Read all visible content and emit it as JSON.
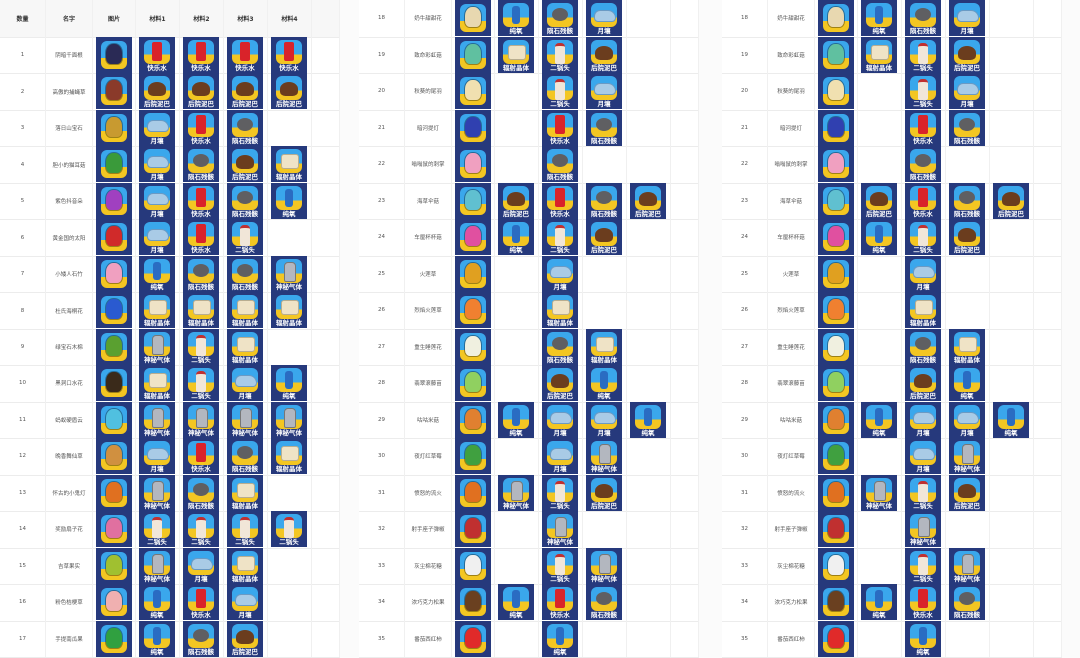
{
  "headers": [
    "数量",
    "名字",
    "图片",
    "材料1",
    "材料2",
    "材料3",
    "材料4"
  ],
  "materials": {
    "K": {
      "label": "快乐水",
      "icon": "cola-can-icon",
      "color": "#d9232a"
    },
    "M": {
      "label": "后院泥巴",
      "icon": "mud-icon",
      "color": "#6b3d1e"
    },
    "Y": {
      "label": "月壤",
      "icon": "moon-soil-icon",
      "color": "#a9cbe6"
    },
    "S": {
      "label": "陨石残骸",
      "icon": "meteorite-icon",
      "color": "#5f5f62"
    },
    "F": {
      "label": "辐射晶体",
      "icon": "crystal-icon",
      "color": "#efe3c6"
    },
    "O": {
      "label": "纯氧",
      "icon": "oxygen-bottle-icon",
      "color": "#2a6cc2"
    },
    "G": {
      "label": "神秘气体",
      "icon": "gas-cylinder-icon",
      "color": "#b3b7bf"
    },
    "E": {
      "label": "二锅头",
      "icon": "liquor-bottle-icon",
      "color": "#f1e6d8"
    }
  },
  "rows_left": [
    {
      "num": "1",
      "name": "阴暗千面根",
      "plant": "#2a2a55",
      "mats": [
        "K",
        "K",
        "K",
        "K"
      ]
    },
    {
      "num": "2",
      "name": "高傲的捕蝇草",
      "plant": "#8a3a2a",
      "mats": [
        "M",
        "M",
        "M",
        "M"
      ]
    },
    {
      "num": "3",
      "name": "落日山宝石",
      "plant": "#c89a30",
      "mats": [
        "Y",
        "K",
        "S",
        ""
      ]
    },
    {
      "num": "4",
      "name": "胆小的猫耳菇",
      "plant": "#3a9a3a",
      "mats": [
        "Y",
        "S",
        "M",
        "F"
      ]
    },
    {
      "num": "5",
      "name": "紫色抖音朵",
      "plant": "#a040c0",
      "mats": [
        "Y",
        "K",
        "S",
        "O"
      ]
    },
    {
      "num": "6",
      "name": "黄金国的太阳",
      "plant": "#d02a2a",
      "mats": [
        "Y",
        "K",
        "E",
        ""
      ]
    },
    {
      "num": "7",
      "name": "小矮人石竹",
      "plant": "#f0a0c0",
      "mats": [
        "O",
        "S",
        "S",
        "G"
      ]
    },
    {
      "num": "8",
      "name": "杜氏海桐花",
      "plant": "#2a5ad0",
      "mats": [
        "F",
        "F",
        "F",
        "F"
      ]
    },
    {
      "num": "9",
      "name": "绿宝石木棉",
      "plant": "#5aa030",
      "mats": [
        "G",
        "E",
        "F",
        ""
      ]
    },
    {
      "num": "10",
      "name": "黑洞口水花",
      "plant": "#3a2a1a",
      "mats": [
        "F",
        "E",
        "Y",
        "O"
      ]
    },
    {
      "num": "11",
      "name": "蚂蚁硬盾云",
      "plant": "#50c0e0",
      "mats": [
        "G",
        "G",
        "G",
        "G"
      ]
    },
    {
      "num": "12",
      "name": "晚香舞仙草",
      "plant": "#d09040",
      "mats": [
        "Y",
        "K",
        "S",
        "F"
      ]
    },
    {
      "num": "13",
      "name": "怀古的小鬼灯",
      "plant": "#e07020",
      "mats": [
        "G",
        "S",
        "F",
        ""
      ]
    },
    {
      "num": "14",
      "name": "奖励扇子花",
      "plant": "#e070a0",
      "mats": [
        "E",
        "E",
        "E",
        "E"
      ]
    },
    {
      "num": "15",
      "name": "吉草果实",
      "plant": "#a0c030",
      "mats": [
        "G",
        "Y",
        "F",
        ""
      ]
    },
    {
      "num": "16",
      "name": "粉色桔梗草",
      "plant": "#f0b0b0",
      "mats": [
        "O",
        "K",
        "Y",
        ""
      ]
    },
    {
      "num": "17",
      "name": "手提南瓜果",
      "plant": "#30a040",
      "mats": [
        "O",
        "S",
        "M",
        ""
      ]
    }
  ],
  "rows_right": [
    {
      "num": "18",
      "name": "奶牛甜甜花",
      "plant": "#e8d8b0",
      "mats": [
        "O",
        "S",
        "Y",
        ""
      ]
    },
    {
      "num": "19",
      "name": "致命彩虹菇",
      "plant": "#60c0a0",
      "mats": [
        "F",
        "E",
        "M",
        ""
      ]
    },
    {
      "num": "20",
      "name": "秋葵的尾羽",
      "plant": "#f0e0b0",
      "mats": [
        "",
        "E",
        "Y",
        ""
      ]
    },
    {
      "num": "21",
      "name": "暗河提灯",
      "plant": "#3040b0",
      "mats": [
        "",
        "K",
        "S",
        ""
      ]
    },
    {
      "num": "22",
      "name": "嗡嗡鼠的刺掌",
      "plant": "#f0a0c0",
      "mats": [
        "",
        "S",
        "",
        ""
      ]
    },
    {
      "num": "23",
      "name": "海草伞菇",
      "plant": "#60c0d0",
      "mats": [
        "M",
        "K",
        "S",
        "M"
      ]
    },
    {
      "num": "24",
      "name": "车厘杯杯菇",
      "plant": "#e050a0",
      "mats": [
        "O",
        "E",
        "M",
        ""
      ]
    },
    {
      "num": "25",
      "name": "火莲草",
      "plant": "#e0a020",
      "mats": [
        "",
        "Y",
        "",
        ""
      ]
    },
    {
      "num": "26",
      "name": "烈焰火莲草",
      "plant": "#f08030",
      "mats": [
        "",
        "F",
        "",
        ""
      ]
    },
    {
      "num": "27",
      "name": "重生睡莲花",
      "plant": "#f0f0e0",
      "mats": [
        "",
        "S",
        "F",
        ""
      ]
    },
    {
      "num": "28",
      "name": "翡翠滚藤苗",
      "plant": "#90d060",
      "mats": [
        "",
        "M",
        "O",
        ""
      ]
    },
    {
      "num": "29",
      "name": "咕咕米菇",
      "plant": "#e08030",
      "mats": [
        "O",
        "Y",
        "Y",
        "O"
      ]
    },
    {
      "num": "30",
      "name": "夜灯红草莓",
      "plant": "#40a040",
      "mats": [
        "",
        "Y",
        "G",
        ""
      ]
    },
    {
      "num": "31",
      "name": "愤怒的流火",
      "plant": "#e07020",
      "mats": [
        "G",
        "E",
        "M",
        ""
      ]
    },
    {
      "num": "32",
      "name": "射手座子弹椒",
      "plant": "#c03030",
      "mats": [
        "",
        "G",
        "",
        ""
      ]
    },
    {
      "num": "33",
      "name": "灰尘棉花糖",
      "plant": "#f0f0f0",
      "mats": [
        "",
        "E",
        "G",
        ""
      ]
    },
    {
      "num": "34",
      "name": "浓巧克力松果",
      "plant": "#6a4020",
      "mats": [
        "O",
        "K",
        "S",
        ""
      ]
    },
    {
      "num": "35",
      "name": "番茄西红柿",
      "plant": "#e02a2a",
      "mats": [
        "",
        "O",
        "",
        ""
      ]
    }
  ]
}
